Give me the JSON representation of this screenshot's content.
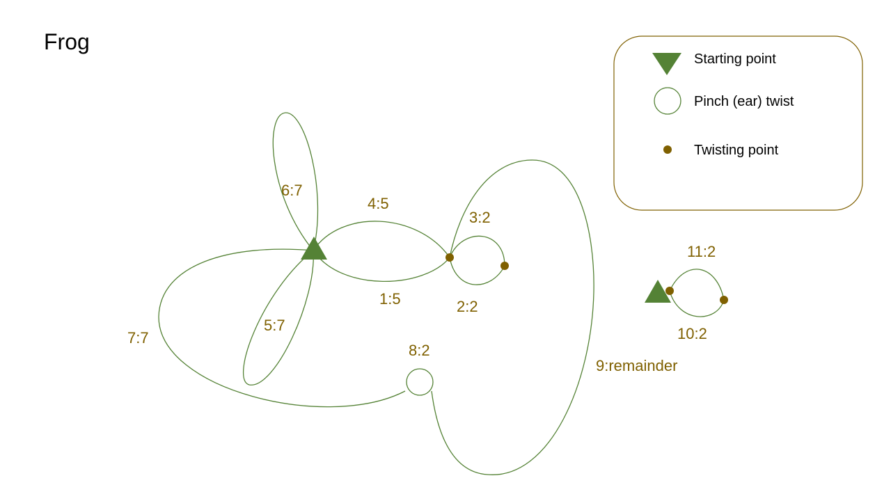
{
  "title": "Frog",
  "colors": {
    "line": "#548235",
    "start_marker": "#548235",
    "twist_point": "#7f6000",
    "label": "#7f6000",
    "legend_border": "#7f6000"
  },
  "legend": {
    "starting_point": "Starting point",
    "pinch_twist": "Pinch (ear) twist",
    "twisting_point": "Twisting point"
  },
  "bubbles": {
    "b1": "1:5",
    "b2": "2:2",
    "b3": "3:2",
    "b4": "4:5",
    "b5": "5:7",
    "b6": "6:7",
    "b7": "7:7",
    "b8": "8:2",
    "b9": "9:remainder",
    "b10": "10:2",
    "b11": "11:2"
  }
}
